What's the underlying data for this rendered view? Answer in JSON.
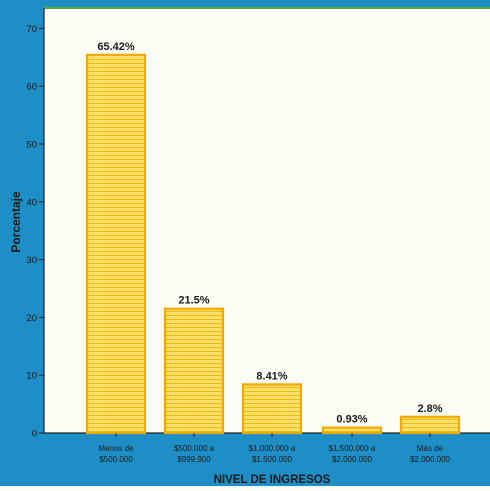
{
  "chart_data": {
    "type": "bar",
    "categories": [
      [
        "Menos de",
        "$500.000"
      ],
      [
        "$500.000 a",
        "$999.900"
      ],
      [
        "$1.000.000 a",
        "$1.500.000"
      ],
      [
        "$1.500.000 a",
        "$2.000.000"
      ],
      [
        "Más de",
        "$2.000.000"
      ]
    ],
    "values": [
      65.42,
      21.5,
      8.41,
      0.93,
      2.8
    ],
    "data_labels": [
      "65.42%",
      "21.5%",
      "8.41%",
      "0.93%",
      "2.8%"
    ],
    "xlabel": "NIVEL DE INGRESOS",
    "ylabel": "Porcentaje",
    "ylim": [
      0,
      72
    ],
    "yticks": [
      0,
      10,
      20,
      30,
      40,
      50,
      60,
      70
    ],
    "grid": false,
    "colors": {
      "background": "#1e8fc6",
      "plot_background": "#fdfdf6",
      "bar_fill": "#ffdf6b",
      "bar_stroke": "#f2a900",
      "bar_hatch": "#f0b800",
      "frame_top": "#5aa83c",
      "text": "#1a1a1a"
    }
  }
}
